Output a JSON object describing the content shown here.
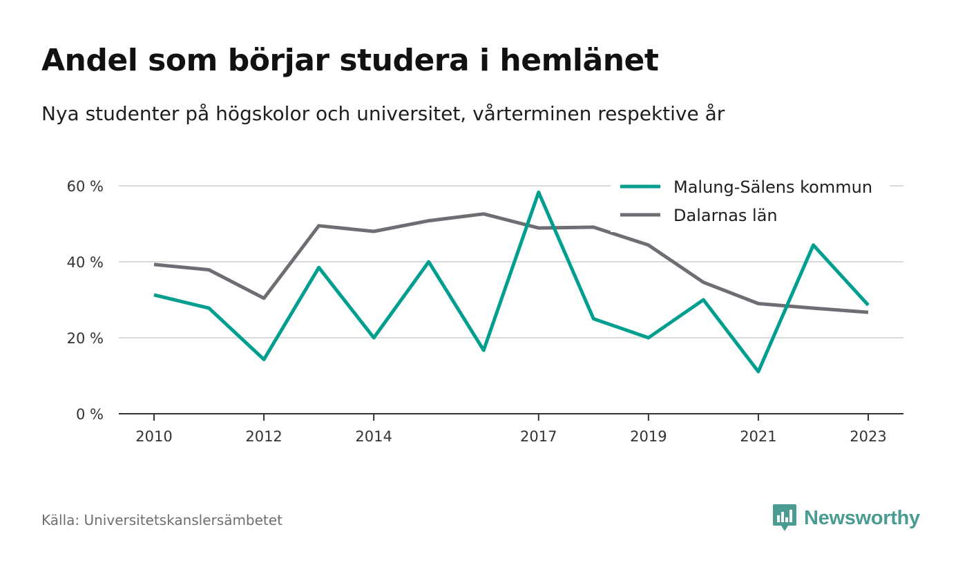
{
  "chart_data": {
    "type": "line",
    "title": "Andel som börjar studera i hemlänet",
    "subtitle": "Nya studenter på högskolor och universitet, vårterminen respektive år",
    "x": [
      2010,
      2011,
      2012,
      2013,
      2014,
      2015,
      2016,
      2017,
      2018,
      2019,
      2020,
      2021,
      2022,
      2023
    ],
    "x_tick_values": [
      2010,
      2012,
      2014,
      2017,
      2019,
      2021,
      2023
    ],
    "x_tick_labels": [
      "2010",
      "2012",
      "2014",
      "2017",
      "2019",
      "2021",
      "2023"
    ],
    "ylim": [
      0,
      60
    ],
    "y_tick_values": [
      0,
      20,
      40,
      60
    ],
    "y_tick_labels": [
      "0 %",
      "20 %",
      "40 %",
      "60 %"
    ],
    "grid": true,
    "legend_position": "top-right",
    "series": [
      {
        "name": "Malung-Sälens kommun",
        "color": "#009e8e",
        "values": [
          31.3,
          27.8,
          14.3,
          38.5,
          20.0,
          40.0,
          16.7,
          58.3,
          25.0,
          20.0,
          30.0,
          11.1,
          44.4,
          28.6
        ]
      },
      {
        "name": "Dalarnas län",
        "color": "#6e6d73",
        "values": [
          39.3,
          37.9,
          30.4,
          49.5,
          48.0,
          50.8,
          52.6,
          48.9,
          49.1,
          44.4,
          34.6,
          29.0,
          27.8,
          26.7
        ]
      }
    ]
  },
  "footer": {
    "source": "Källa: Universitetskanslersämbetet",
    "brand": "Newsworthy"
  },
  "colors": {
    "brand": "#4a9b92",
    "grid": "#d9d9d9",
    "axis": "#333333"
  }
}
